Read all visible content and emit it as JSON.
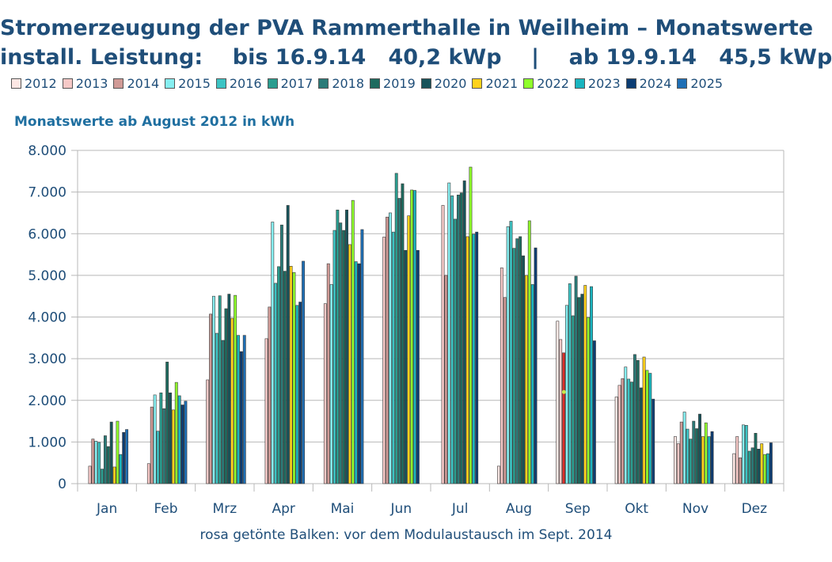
{
  "chart_data": {
    "type": "bar",
    "title_line1": "Stromerzeugung der PVA Rammerthalle in Weilheim – Monatswerte",
    "title_line2": "install. Leistung:    bis 16.9.14   40,2 kWp    |    ab 19.9.14   45,5 kWp",
    "subtitle": "Monatswerte ab August 2012 in kWh",
    "footnote": "rosa getönte Balken: vor dem Modulaustausch im Sept. 2014",
    "xlabel": "",
    "ylabel": "",
    "ylim": [
      0,
      8000
    ],
    "yticks": [
      0,
      1000,
      2000,
      3000,
      4000,
      5000,
      6000,
      7000,
      8000
    ],
    "ytick_labels": [
      "0",
      "1.000",
      "2.000",
      "3.000",
      "4.000",
      "5.000",
      "6.000",
      "7.000",
      "8.000"
    ],
    "grid": true,
    "legend_position": "top",
    "categories": [
      "Jan",
      "Feb",
      "Mrz",
      "Apr",
      "Mai",
      "Jun",
      "Jul",
      "Aug",
      "Sep",
      "Okt",
      "Nov",
      "Dez"
    ],
    "series": [
      {
        "name": "2012",
        "color": "#fde7e4",
        "values": [
          null,
          null,
          null,
          null,
          null,
          null,
          null,
          420,
          3900,
          2080,
          1130,
          720
        ]
      },
      {
        "name": "2013",
        "color": "#f6c9c7",
        "values": [
          420,
          480,
          2490,
          3480,
          4320,
          5920,
          6680,
          5180,
          3460,
          2360,
          960,
          1130
        ]
      },
      {
        "name": "2014",
        "color": "#d09a96",
        "values": [
          1070,
          1840,
          4070,
          4240,
          5280,
          6400,
          5000,
          4470,
          3140,
          2520,
          1480,
          620
        ]
      },
      {
        "name": "2015",
        "color": "#86eef0",
        "values": [
          1020,
          2130,
          4500,
          6280,
          4780,
          6500,
          7220,
          6170,
          4280,
          2800,
          1720,
          1410
        ]
      },
      {
        "name": "2016",
        "color": "#3cc4c4",
        "values": [
          990,
          1260,
          3610,
          4810,
          6080,
          6040,
          6910,
          6300,
          4800,
          2510,
          1310,
          1400
        ]
      },
      {
        "name": "2017",
        "color": "#2a9d8f",
        "values": [
          350,
          2180,
          4510,
          5210,
          6570,
          7450,
          6350,
          5650,
          4030,
          2440,
          1070,
          780
        ]
      },
      {
        "name": "2018",
        "color": "#2b7b78",
        "values": [
          1150,
          1800,
          3440,
          6210,
          6260,
          6850,
          6930,
          5880,
          4980,
          3100,
          1500,
          860
        ]
      },
      {
        "name": "2019",
        "color": "#1e6b5f",
        "values": [
          890,
          2920,
          4200,
          5100,
          6080,
          7200,
          6980,
          5930,
          4470,
          2960,
          1320,
          1210
        ]
      },
      {
        "name": "2020",
        "color": "#17535a",
        "values": [
          1480,
          2180,
          4550,
          6680,
          6570,
          5600,
          7270,
          5470,
          4550,
          2300,
          1670,
          830
        ]
      },
      {
        "name": "2021",
        "color": "#ffd21a",
        "values": [
          400,
          1770,
          3970,
          5220,
          5740,
          6430,
          5930,
          5000,
          4760,
          3040,
          1130,
          960
        ]
      },
      {
        "name": "2022",
        "color": "#8fff2a",
        "values": [
          1500,
          2430,
          4520,
          5070,
          6800,
          7050,
          7600,
          6310,
          3990,
          2720,
          1460,
          700
        ]
      },
      {
        "name": "2023",
        "color": "#1ab5c0",
        "values": [
          700,
          2110,
          3560,
          4280,
          5330,
          7040,
          5990,
          4780,
          4730,
          2650,
          1130,
          720
        ]
      },
      {
        "name": "2024",
        "color": "#0c3d73",
        "values": [
          1230,
          1890,
          3170,
          4360,
          5280,
          5600,
          6040,
          5660,
          3430,
          2030,
          1250,
          980
        ]
      },
      {
        "name": "2025",
        "color": "#1f6fb5",
        "values": [
          1300,
          1980,
          3560,
          5340,
          6100,
          null,
          null,
          null,
          null,
          null,
          null,
          null
        ]
      }
    ],
    "highlight_marks": [
      {
        "category": "Sep",
        "series": "2014",
        "color": "#e0302a"
      },
      {
        "category": "Sep",
        "series": "2014",
        "marker_value": 2200,
        "marker_color": "#c8e84a"
      }
    ]
  }
}
